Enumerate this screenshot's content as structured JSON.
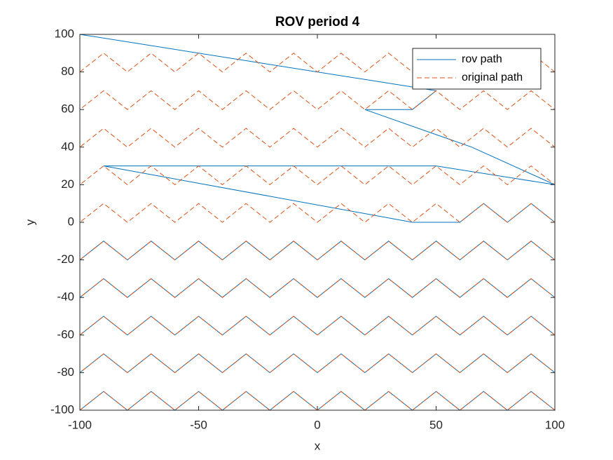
{
  "chart_data": {
    "type": "line",
    "title": "ROV period 4",
    "x_label": "x",
    "y_label": "y",
    "xlim": [
      -100,
      100
    ],
    "ylim": [
      -100,
      100
    ],
    "xticks": [
      -100,
      -50,
      0,
      50,
      100
    ],
    "yticks": [
      -100,
      -80,
      -60,
      -40,
      -20,
      0,
      20,
      40,
      60,
      80,
      100
    ],
    "grid": false,
    "legend_position": "northeast",
    "series": [
      {
        "name": "rov path",
        "color": "#0072BD",
        "dash": "solid",
        "x": [
          -100,
          50,
          40,
          20,
          65,
          100,
          50,
          -90,
          40,
          60,
          70,
          80,
          90,
          100,
          100,
          90,
          80,
          70,
          60,
          50,
          40,
          30,
          20,
          10,
          0,
          -10,
          -20,
          -30,
          -40,
          -50,
          -60,
          -70,
          -80,
          -90,
          -100,
          -100,
          -90,
          -80,
          -70,
          -60,
          -50,
          -40,
          -30,
          -20,
          -10,
          0,
          10,
          20,
          30,
          40,
          50,
          60,
          70,
          80,
          90,
          100,
          100,
          90,
          80,
          70,
          60,
          50,
          40,
          30,
          20,
          10,
          0,
          -10,
          -20,
          -30,
          -40,
          -50,
          -60,
          -70,
          -80,
          -90,
          -100,
          -100,
          -90,
          -80,
          -70,
          -60,
          -50,
          -40,
          -30,
          -20,
          -10,
          0,
          10,
          20,
          30,
          40,
          50,
          60,
          70,
          80,
          90,
          100,
          100,
          90,
          80,
          70,
          60,
          50,
          40,
          30,
          20,
          10,
          0,
          -10,
          -20,
          -30,
          -40,
          -50,
          -60,
          -70,
          -80,
          -90,
          -100
        ],
        "values": [
          100,
          70,
          60,
          60,
          40,
          20,
          30,
          30,
          0,
          0,
          10,
          0,
          10,
          0,
          -20,
          -10,
          -20,
          -10,
          -20,
          -10,
          -20,
          -10,
          -20,
          -10,
          -20,
          -10,
          -20,
          -10,
          -20,
          -10,
          -20,
          -10,
          -20,
          -10,
          -20,
          -40,
          -30,
          -40,
          -30,
          -40,
          -30,
          -40,
          -30,
          -40,
          -30,
          -40,
          -30,
          -40,
          -30,
          -40,
          -30,
          -40,
          -30,
          -40,
          -30,
          -40,
          -60,
          -50,
          -60,
          -50,
          -60,
          -50,
          -60,
          -50,
          -60,
          -50,
          -60,
          -50,
          -60,
          -50,
          -60,
          -50,
          -60,
          -50,
          -60,
          -50,
          -60,
          -80,
          -70,
          -80,
          -70,
          -80,
          -70,
          -80,
          -70,
          -80,
          -70,
          -80,
          -70,
          -80,
          -70,
          -80,
          -70,
          -80,
          -70,
          -80,
          -70,
          -80,
          -100,
          -90,
          -100,
          -90,
          -100,
          -90,
          -100,
          -90,
          -100,
          -90,
          -100,
          -90,
          -100,
          -90,
          -100,
          -90,
          -100,
          -90,
          -100,
          -90,
          -100
        ]
      },
      {
        "name": "original path",
        "color": "#D95319",
        "dash": "dashed",
        "x": [
          -100,
          -90,
          -80,
          -70,
          -60,
          -50,
          -40,
          -30,
          -20,
          -10,
          0,
          10,
          20,
          30,
          40,
          50,
          60,
          70,
          80,
          90,
          100,
          100,
          90,
          80,
          70,
          60,
          50,
          40,
          30,
          20,
          10,
          0,
          -10,
          -20,
          -30,
          -40,
          -50,
          -60,
          -70,
          -80,
          -90,
          -100,
          -100,
          -90,
          -80,
          -70,
          -60,
          -50,
          -40,
          -30,
          -20,
          -10,
          0,
          10,
          20,
          30,
          40,
          50,
          60,
          70,
          80,
          90,
          100,
          100,
          90,
          80,
          70,
          60,
          50,
          40,
          30,
          20,
          10,
          0,
          -10,
          -20,
          -30,
          -40,
          -50,
          -60,
          -70,
          -80,
          -90,
          -100,
          -100,
          -90,
          -80,
          -70,
          -60,
          -50,
          -40,
          -30,
          -20,
          -10,
          0,
          10,
          20,
          30,
          40,
          50,
          60,
          70,
          80,
          90,
          100,
          100,
          90,
          80,
          70,
          60,
          50,
          40,
          30,
          20,
          10,
          0,
          -10,
          -20,
          -30,
          -40,
          -50,
          -60,
          -70,
          -80,
          -90,
          -100,
          -100,
          -90,
          -80,
          -70,
          -60,
          -50,
          -40,
          -30,
          -20,
          -10,
          0,
          10,
          20,
          30,
          40,
          50,
          60,
          70,
          80,
          90,
          100,
          100,
          90,
          80,
          70,
          60,
          50,
          40,
          30,
          20,
          10,
          0,
          -10,
          -20,
          -30,
          -40,
          -50,
          -60,
          -70,
          -80,
          -90,
          -100,
          -100,
          -90,
          -80,
          -70,
          -60,
          -50,
          -40,
          -30,
          -20,
          -10,
          0,
          10,
          20,
          30,
          40,
          50,
          60,
          70,
          80,
          90,
          100,
          100,
          90,
          80,
          70,
          60,
          50,
          40,
          30,
          20,
          10,
          0,
          -10,
          -20,
          -30,
          -40,
          -50,
          -60,
          -70,
          -80,
          -90,
          -100
        ],
        "values": [
          80,
          90,
          80,
          90,
          80,
          90,
          80,
          90,
          80,
          90,
          80,
          90,
          80,
          90,
          80,
          90,
          80,
          90,
          80,
          90,
          80,
          60,
          70,
          60,
          70,
          60,
          70,
          60,
          70,
          60,
          70,
          60,
          70,
          60,
          70,
          60,
          70,
          60,
          70,
          60,
          70,
          60,
          40,
          50,
          40,
          50,
          40,
          50,
          40,
          50,
          40,
          50,
          40,
          50,
          40,
          50,
          40,
          50,
          40,
          50,
          40,
          50,
          40,
          20,
          30,
          20,
          30,
          20,
          30,
          20,
          30,
          20,
          30,
          20,
          30,
          20,
          30,
          20,
          30,
          20,
          30,
          20,
          30,
          20,
          0,
          10,
          0,
          10,
          0,
          10,
          0,
          10,
          0,
          10,
          0,
          10,
          0,
          10,
          0,
          10,
          0,
          10,
          0,
          10,
          0,
          -20,
          -10,
          -20,
          -10,
          -20,
          -10,
          -20,
          -10,
          -20,
          -10,
          -20,
          -10,
          -20,
          -10,
          -20,
          -10,
          -20,
          -10,
          -20,
          -10,
          -20,
          -40,
          -30,
          -40,
          -30,
          -40,
          -30,
          -40,
          -30,
          -40,
          -30,
          -40,
          -30,
          -40,
          -30,
          -40,
          -30,
          -40,
          -30,
          -40,
          -30,
          -40,
          -60,
          -50,
          -60,
          -50,
          -60,
          -50,
          -60,
          -50,
          -60,
          -50,
          -60,
          -50,
          -60,
          -50,
          -60,
          -50,
          -60,
          -50,
          -60,
          -50,
          -60,
          -80,
          -70,
          -80,
          -70,
          -80,
          -70,
          -80,
          -70,
          -80,
          -70,
          -80,
          -70,
          -80,
          -70,
          -80,
          -70,
          -80,
          -70,
          -80,
          -70,
          -80,
          -100,
          -90,
          -100,
          -90,
          -100,
          -90,
          -100,
          -90,
          -100,
          -90,
          -100,
          -90,
          -100,
          -90,
          -100,
          -90,
          -100,
          -90,
          -100,
          -90,
          -100
        ]
      }
    ]
  }
}
